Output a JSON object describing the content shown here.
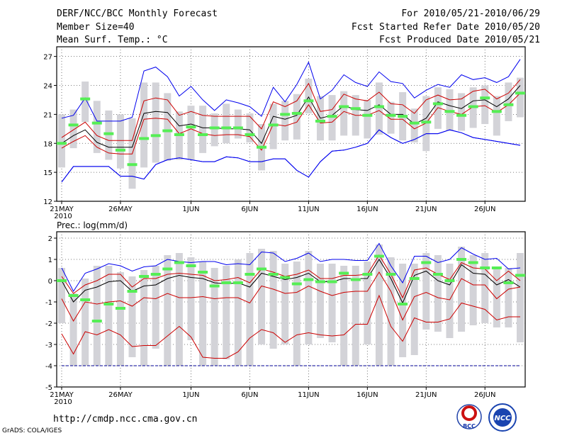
{
  "header": {
    "title": "DERF/NCC/BCC Monthly Forecast",
    "member_size": "Member Size=40",
    "variable": "Mean Surf. Temp.: °C",
    "period": "For 2010/05/21-2010/06/29",
    "started": "Fcst Started Refer Date 2010/05/20",
    "produced": "Fcst Produced Date 2010/05/21"
  },
  "footer": {
    "url": "http://cmdp.ncc.cma.gov.cn",
    "credit": "GrADS: COLA/IGES",
    "logo_bcc": "BCC",
    "logo_ncc": "NCC"
  },
  "colors": {
    "envelope": "#0000ee",
    "inner_band": "#cc0000",
    "mean": "#000000",
    "box": "#d3d3d8",
    "marker": "#55ee55",
    "floor": "#000099"
  },
  "chart_data": [
    {
      "type": "line",
      "title": "Mean Surf. Temp.: °C",
      "ylim": [
        12,
        28
      ],
      "yticks": [
        12,
        15,
        18,
        21,
        24,
        27
      ],
      "ytick_labels": [
        "12",
        "15",
        "18",
        "21",
        "24",
        "27"
      ],
      "x_tick_labels": [
        "21MAY",
        "26MAY",
        "1JUN",
        "6JUN",
        "11JUN",
        "16JUN",
        "21JUN",
        "26JUN"
      ],
      "x_tick_days": [
        0,
        5,
        11,
        16,
        21,
        26,
        31,
        36
      ],
      "year_label": "2010",
      "days": 40,
      "series": [
        {
          "name": "max",
          "values": [
            14.0,
            15.6,
            15.6,
            15.6,
            15.6,
            14.6,
            14.6,
            14.3,
            15.8,
            16.3,
            16.5,
            16.3,
            16.1,
            16.1,
            16.6,
            16.5,
            16.1,
            16.1,
            16.4,
            16.4,
            15.2,
            14.5,
            16.1,
            17.2,
            17.3,
            17.6,
            18.0,
            19.4,
            18.6,
            18.0,
            18.4,
            19.0,
            19.0,
            19.4,
            19.1,
            18.6,
            18.4,
            18.2,
            18.0,
            17.8
          ]
        },
        {
          "name": "upper",
          "values": [
            20.6,
            20.9,
            22.7,
            20.3,
            20.3,
            20.3,
            20.7,
            25.5,
            25.9,
            24.9,
            22.9,
            23.9,
            22.5,
            21.4,
            22.5,
            22.2,
            21.8,
            20.8,
            23.8,
            22.3,
            24.1,
            26.4,
            22.6,
            23.5,
            25.1,
            24.3,
            23.9,
            25.4,
            24.4,
            24.2,
            22.7,
            23.5,
            24.1,
            23.8,
            25.1,
            24.6,
            24.8,
            24.3,
            24.9,
            26.7
          ]
        },
        {
          "name": "upper_red",
          "values": [
            18.6,
            19.4,
            20.2,
            18.8,
            18.3,
            18.3,
            18.3,
            22.4,
            22.7,
            22.5,
            20.9,
            21.3,
            20.9,
            20.8,
            20.8,
            20.8,
            20.8,
            19.5,
            22.3,
            21.8,
            22.4,
            24.2,
            21.3,
            21.5,
            23.1,
            22.6,
            22.4,
            23.3,
            22.1,
            22.0,
            21.1,
            22.5,
            23.0,
            22.5,
            22.6,
            23.4,
            23.6,
            22.6,
            23.2,
            24.6
          ]
        },
        {
          "name": "mean",
          "values": [
            18.0,
            18.8,
            19.4,
            18.1,
            17.6,
            17.6,
            17.6,
            21.1,
            21.3,
            21.2,
            19.8,
            20.0,
            19.6,
            19.6,
            19.5,
            19.5,
            19.4,
            18.0,
            20.8,
            20.5,
            20.9,
            22.8,
            20.6,
            20.9,
            21.9,
            21.5,
            21.4,
            22.0,
            21.0,
            21.0,
            20.0,
            20.6,
            22.3,
            21.9,
            21.6,
            22.4,
            22.5,
            21.8,
            22.6,
            24.0
          ]
        },
        {
          "name": "lower_red",
          "values": [
            17.5,
            18.2,
            18.8,
            17.6,
            17.0,
            16.9,
            16.9,
            20.5,
            20.6,
            20.5,
            19.0,
            19.5,
            19.0,
            18.8,
            18.9,
            18.9,
            18.7,
            17.3,
            20.0,
            19.8,
            20.2,
            22.0,
            20.1,
            20.2,
            21.3,
            20.9,
            20.9,
            21.4,
            20.5,
            20.5,
            19.5,
            20.1,
            21.7,
            21.3,
            21.0,
            21.8,
            21.9,
            21.2,
            22.0,
            23.2
          ]
        },
        {
          "name": "min",
          "values": [
            14.0,
            15.6,
            15.6,
            15.6,
            15.6,
            14.6,
            14.6,
            14.3,
            15.8,
            16.3,
            16.5,
            16.3,
            16.1,
            16.1,
            16.6,
            16.5,
            16.1,
            16.1,
            16.4,
            16.4,
            15.2,
            14.5,
            16.1,
            17.2,
            17.3,
            17.6,
            18.0,
            19.4,
            18.6,
            18.0,
            18.4,
            19.0,
            19.0,
            19.4,
            19.1,
            18.6,
            18.4,
            18.2,
            18.0,
            17.8
          ]
        },
        {
          "name": "deterministic",
          "values": [
            18.0,
            19.9,
            22.6,
            20.1,
            19.0,
            17.3,
            15.8,
            18.5,
            18.8,
            19.3,
            18.9,
            19.7,
            18.9,
            19.6,
            19.6,
            19.6,
            18.9,
            17.6,
            19.9,
            21.0,
            21.1,
            22.4,
            20.3,
            20.8,
            21.8,
            21.6,
            20.9,
            21.8,
            20.9,
            20.8,
            20.1,
            20.2,
            22.1,
            21.3,
            20.9,
            21.8,
            22.7,
            21.3,
            22.0,
            23.2
          ]
        }
      ],
      "box_low": [
        15.5,
        17.5,
        20.2,
        17.0,
        16.3,
        15.4,
        13.3,
        15.5,
        16.0,
        16.2,
        16.3,
        16.3,
        17.0,
        17.7,
        18.0,
        18.5,
        18.1,
        15.2,
        17.4,
        18.3,
        18.4,
        21.1,
        18.3,
        18.3,
        18.8,
        18.8,
        18.5,
        18.9,
        19.0,
        18.3,
        18.1,
        17.2,
        19.5,
        19.3,
        19.3,
        19.6,
        20.0,
        18.8,
        20.3,
        20.7
      ],
      "box_high": [
        21.0,
        21.5,
        24.4,
        22.4,
        21.4,
        21.0,
        20.6,
        24.3,
        24.3,
        23.2,
        21.3,
        21.9,
        21.9,
        21.1,
        22.1,
        21.5,
        21.1,
        20.0,
        22.1,
        22.4,
        23.1,
        24.7,
        22.9,
        23.0,
        23.4,
        23.0,
        22.5,
        24.3,
        22.3,
        23.3,
        21.6,
        22.9,
        23.8,
        23.6,
        23.2,
        23.8,
        24.0,
        22.9,
        24.3,
        24.8
      ]
    },
    {
      "type": "line",
      "title": "Prec.: log(mm/d)",
      "ylim": [
        -5,
        2.3
      ],
      "yticks": [
        -5,
        -4,
        -3,
        -2,
        -1,
        0,
        1,
        2
      ],
      "ytick_labels": [
        "-5",
        "-4",
        "-3",
        "-2",
        "-1",
        "0",
        "1",
        "2"
      ],
      "x_tick_labels": [
        "21MAY",
        "26MAY",
        "1JUN",
        "6JUN",
        "11JUN",
        "16JUN",
        "21JUN",
        "26JUN"
      ],
      "x_tick_days": [
        0,
        5,
        11,
        16,
        21,
        26,
        31,
        36
      ],
      "year_label": "2010",
      "days": 40,
      "floor_value": -4,
      "series": [
        {
          "name": "upper",
          "values": [
            0.6,
            -0.5,
            0.35,
            0.55,
            0.8,
            0.7,
            0.45,
            0.65,
            0.7,
            1.0,
            0.9,
            0.85,
            0.9,
            0.9,
            0.75,
            0.8,
            0.75,
            1.35,
            1.3,
            0.9,
            1.05,
            1.3,
            0.9,
            1.0,
            1.0,
            0.95,
            0.95,
            1.75,
            0.7,
            -0.1,
            1.15,
            1.15,
            0.85,
            1.0,
            1.55,
            1.25,
            1.0,
            1.05,
            0.55,
            0.6
          ]
        },
        {
          "name": "upper_red",
          "values": [
            0.2,
            -0.6,
            -0.2,
            0.0,
            0.3,
            0.3,
            -0.3,
            0.1,
            0.1,
            0.3,
            0.35,
            0.3,
            0.25,
            0.0,
            0.05,
            0.15,
            -0.1,
            0.55,
            0.4,
            0.2,
            0.3,
            0.5,
            0.1,
            0.1,
            0.25,
            0.25,
            0.3,
            1.2,
            0.3,
            -0.8,
            0.5,
            0.6,
            0.3,
            0.05,
            0.85,
            0.6,
            0.55,
            0.0,
            0.45,
            0.0
          ]
        },
        {
          "name": "mean",
          "values": [
            0.0,
            -1.0,
            -0.45,
            -0.3,
            -0.05,
            0.0,
            -0.5,
            -0.25,
            -0.2,
            0.1,
            0.25,
            0.15,
            0.1,
            -0.1,
            -0.15,
            -0.1,
            -0.3,
            0.35,
            0.2,
            0.05,
            0.15,
            0.35,
            -0.05,
            -0.05,
            0.1,
            0.1,
            0.1,
            1.0,
            0.1,
            -1.05,
            0.25,
            0.45,
            0.0,
            -0.2,
            0.75,
            0.35,
            0.3,
            -0.2,
            0.05,
            -0.3
          ]
        },
        {
          "name": "lower_red",
          "values": [
            -0.85,
            -1.9,
            -1.0,
            -1.1,
            -1.0,
            -0.95,
            -1.2,
            -0.8,
            -0.85,
            -0.6,
            -0.8,
            -0.8,
            -0.75,
            -0.85,
            -0.8,
            -0.8,
            -1.05,
            -0.25,
            -0.4,
            -0.6,
            -0.55,
            -0.25,
            -0.5,
            -0.7,
            -0.55,
            -0.5,
            -0.5,
            0.4,
            -0.5,
            -1.85,
            -0.75,
            -0.55,
            -0.8,
            -0.9,
            0.1,
            -0.2,
            -0.2,
            -0.85,
            -0.4,
            -0.3
          ]
        },
        {
          "name": "lower_red_2",
          "values": [
            -2.5,
            -3.45,
            -2.4,
            -2.55,
            -2.3,
            -2.55,
            -3.1,
            -3.05,
            -3.05,
            -2.6,
            -2.15,
            -2.65,
            -3.6,
            -3.65,
            -3.65,
            -3.35,
            -2.7,
            -2.3,
            -2.45,
            -2.9,
            -2.55,
            -2.45,
            -2.55,
            -2.6,
            -2.55,
            -2.05,
            -2.05,
            -0.7,
            -2.15,
            -2.85,
            -1.75,
            -1.95,
            -1.95,
            -1.8,
            -1.05,
            -1.2,
            -1.35,
            -1.85,
            -1.7,
            -1.7
          ]
        },
        {
          "name": "deterministic",
          "values": [
            0.0,
            -0.7,
            -0.9,
            -1.9,
            -1.1,
            -1.3,
            -0.5,
            0.2,
            0.3,
            0.55,
            0.85,
            0.7,
            0.4,
            -0.25,
            -0.1,
            -0.1,
            0.3,
            0.55,
            0.3,
            0.15,
            -0.15,
            0.05,
            -0.05,
            -0.05,
            0.35,
            0.05,
            0.3,
            1.15,
            0.3,
            -1.1,
            0.1,
            0.85,
            0.3,
            0.0,
            1.0,
            0.85,
            0.6,
            0.6,
            -0.1,
            0.25
          ]
        }
      ],
      "box_low": [
        -2.0,
        -4.0,
        -4.0,
        -4.0,
        -4.0,
        -4.0,
        -3.6,
        -4.0,
        -3.2,
        -4.0,
        -4.0,
        -2.8,
        -4.0,
        -4.0,
        -3.7,
        -4.0,
        -4.0,
        -3.0,
        -3.2,
        -3.0,
        -4.0,
        -3.0,
        -2.7,
        -2.9,
        -4.0,
        -4.0,
        -3.0,
        -4.0,
        -4.0,
        -3.6,
        -3.5,
        -2.3,
        -2.4,
        -2.7,
        -2.4,
        -2.1,
        -2.0,
        -2.2,
        -2.2,
        -2.9
      ],
      "box_high": [
        0.6,
        -0.6,
        0.1,
        0.7,
        0.7,
        0.4,
        0.2,
        0.5,
        0.7,
        1.2,
        1.3,
        1.1,
        0.9,
        0.6,
        0.7,
        1.0,
        1.3,
        1.5,
        1.4,
        0.8,
        0.9,
        1.4,
        0.8,
        0.8,
        0.7,
        0.7,
        0.9,
        1.7,
        1.1,
        0.8,
        0.8,
        1.3,
        1.2,
        0.8,
        1.6,
        1.2,
        1.3,
        0.6,
        0.6,
        1.3
      ]
    }
  ]
}
